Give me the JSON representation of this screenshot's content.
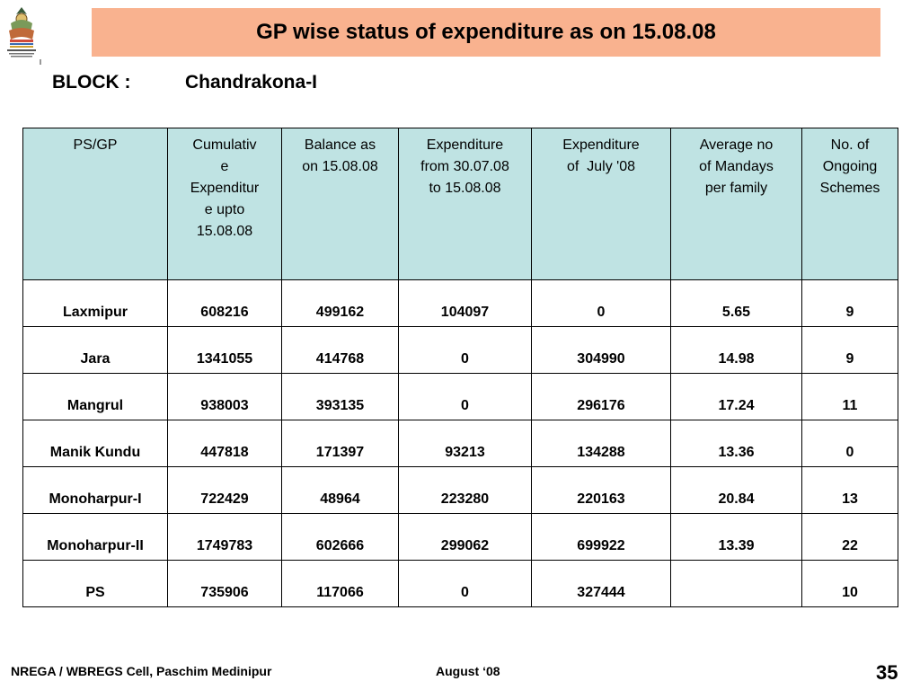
{
  "logo": {
    "icon": "nrega-emblem-icon"
  },
  "title": "GP wise status of expenditure as on 15.08.08",
  "block": {
    "label": "BLOCK :",
    "value": "Chandrakona-I"
  },
  "table": {
    "headers": [
      "PS/GP",
      "Cumulative Expenditure upto 15.08.08",
      "Balance as on 15.08.08",
      "Expenditure from 30.07.08 to 15.08.08",
      "Expenditure of  July '08",
      "Average no of Mandays per family",
      "No. of Ongoing Schemes"
    ],
    "rows": [
      [
        "Laxmipur",
        "608216",
        "499162",
        "104097",
        "0",
        "5.65",
        "9"
      ],
      [
        "Jara",
        "1341055",
        "414768",
        "0",
        "304990",
        "14.98",
        "9"
      ],
      [
        "Mangrul",
        "938003",
        "393135",
        "0",
        "296176",
        "17.24",
        "11"
      ],
      [
        "Manik Kundu",
        "447818",
        "171397",
        "93213",
        "134288",
        "13.36",
        "0"
      ],
      [
        "Monoharpur-I",
        "722429",
        "48964",
        "223280",
        "220163",
        "20.84",
        "13"
      ],
      [
        "Monoharpur-II",
        "1749783",
        "602666",
        "299062",
        "699922",
        "13.39",
        "22"
      ],
      [
        "PS",
        "735906",
        "117066",
        "0",
        "327444",
        "",
        "10"
      ]
    ]
  },
  "footer": {
    "org": "NREGA / WBREGS Cell, Paschim Medinipur",
    "date": "August ‘08",
    "page": "35"
  },
  "colors": {
    "title_bg": "#f9b28f",
    "header_bg": "#bfe3e3"
  }
}
